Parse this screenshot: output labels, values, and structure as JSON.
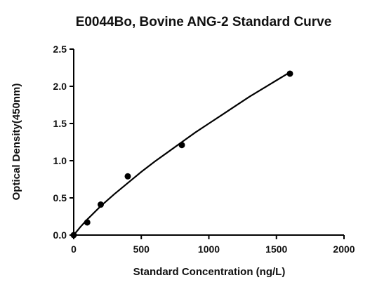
{
  "chart_data": {
    "type": "scatter",
    "title": "E0044Bo, Bovine ANG-2 Standard Curve",
    "xlabel": "Standard Concentration (ng/L)",
    "ylabel": "Optical Density(450nm)",
    "xlim": [
      0,
      2000
    ],
    "ylim": [
      0,
      2.5
    ],
    "xticks": [
      0,
      500,
      1000,
      1500,
      2000
    ],
    "xtick_labels": [
      "0",
      "500",
      "1000",
      "1500",
      "2000"
    ],
    "yticks": [
      0.0,
      0.5,
      1.0,
      1.5,
      2.0,
      2.5
    ],
    "ytick_labels": [
      "0.0",
      "0.5",
      "1.0",
      "1.5",
      "2.0",
      "2.5"
    ],
    "grid": false,
    "series": [
      {
        "x": [
          0,
          100,
          200,
          400,
          800,
          1600
        ],
        "y": [
          0.0,
          0.17,
          0.41,
          0.79,
          1.21,
          2.17
        ],
        "marker": "circle",
        "color": "#000000",
        "fit": "power",
        "fit_points": [
          [
            0,
            0.0
          ],
          [
            50,
            0.11
          ],
          [
            100,
            0.21
          ],
          [
            150,
            0.3
          ],
          [
            200,
            0.39
          ],
          [
            300,
            0.55
          ],
          [
            400,
            0.7
          ],
          [
            500,
            0.85
          ],
          [
            600,
            0.99
          ],
          [
            700,
            1.12
          ],
          [
            800,
            1.25
          ],
          [
            900,
            1.38
          ],
          [
            1000,
            1.5
          ],
          [
            1100,
            1.62
          ],
          [
            1200,
            1.74
          ],
          [
            1300,
            1.86
          ],
          [
            1400,
            1.97
          ],
          [
            1500,
            2.08
          ],
          [
            1600,
            2.19
          ]
        ]
      }
    ]
  }
}
